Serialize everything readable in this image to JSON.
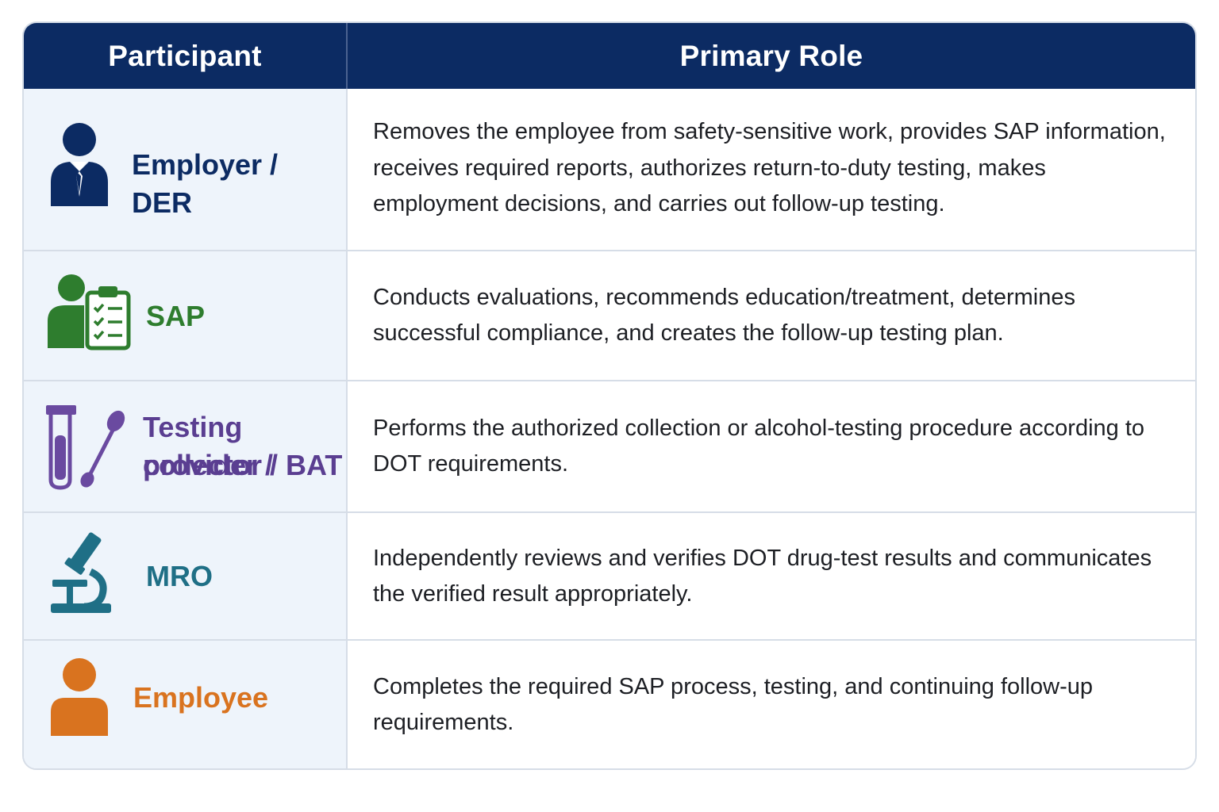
{
  "header": {
    "participant": "Participant",
    "primary_role": "Primary Role"
  },
  "colors": {
    "header_bg": "#0c2b63",
    "employer": "#0c2b63",
    "sap": "#2e7d2e",
    "testing": "#5a3e91",
    "mro": "#1f6f86",
    "employee": "#d9731f"
  },
  "rows": [
    {
      "participant": "Employer / DER",
      "icon": "business-person-icon",
      "role": "Removes the employee from safety-sensitive work, provides SAP information, receives required reports, authorizes return-to-duty testing, makes employment decisions, and carries out follow-up testing."
    },
    {
      "participant": "SAP",
      "icon": "person-clipboard-icon",
      "role": "Conducts evaluations, recommends education/treatment, determines successful compliance, and creates the follow-up testing plan."
    },
    {
      "participant_line1": "Testing provider /",
      "participant_line2": "collector / BAT",
      "icon": "test-tube-swab-icon",
      "role": "Performs the authorized collection or alcohol-testing procedure according to DOT requirements."
    },
    {
      "participant": "MRO",
      "icon": "microscope-icon",
      "role": "Independently reviews and verifies DOT drug-test results and communicates the verified result appropriately."
    },
    {
      "participant": "Employee",
      "icon": "person-icon",
      "role": "Completes the required SAP process, testing, and continuing follow-up requirements."
    }
  ]
}
